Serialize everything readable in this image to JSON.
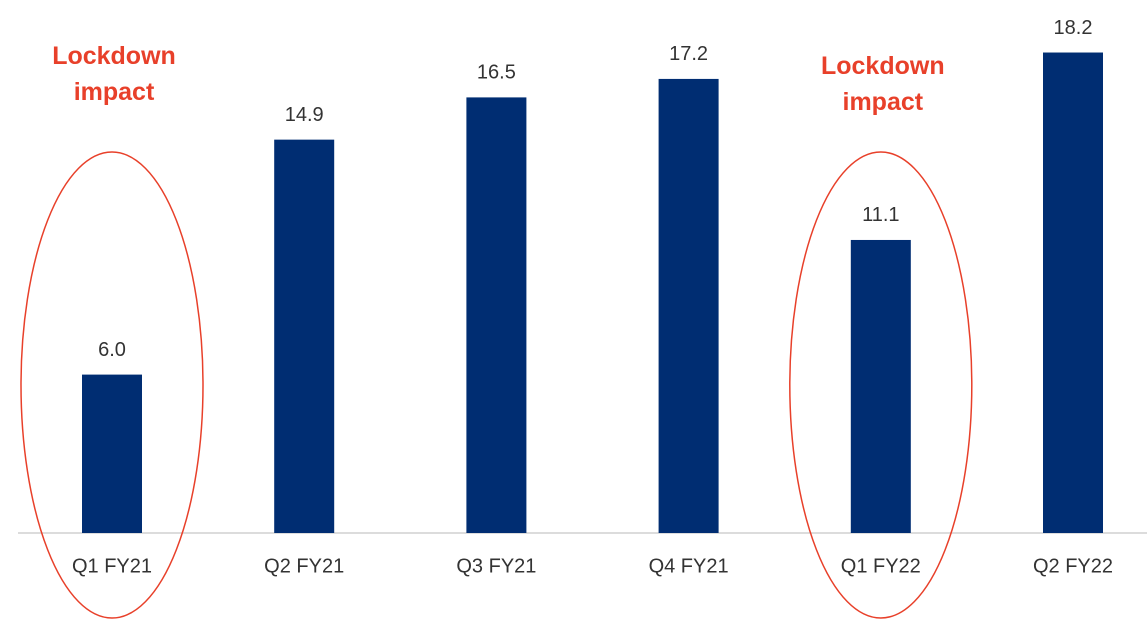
{
  "chart_data": {
    "type": "bar",
    "categories": [
      "Q1 FY21",
      "Q2 FY21",
      "Q3 FY21",
      "Q4 FY21",
      "Q1 FY22",
      "Q2 FY22"
    ],
    "values": [
      6,
      14.9,
      16.5,
      17.2,
      11.1,
      18.2
    ],
    "value_labels": [
      "6.0",
      "14.9",
      "16.5",
      "17.2",
      "11.1",
      "18.2"
    ],
    "color": "#002d72",
    "annotations": [
      {
        "text": "Lockdown impact",
        "category": "Q1 FY21",
        "color": "#e8402a"
      },
      {
        "text": "Lockdown impact",
        "category": "Q1 FY22",
        "color": "#e8402a"
      }
    ]
  }
}
